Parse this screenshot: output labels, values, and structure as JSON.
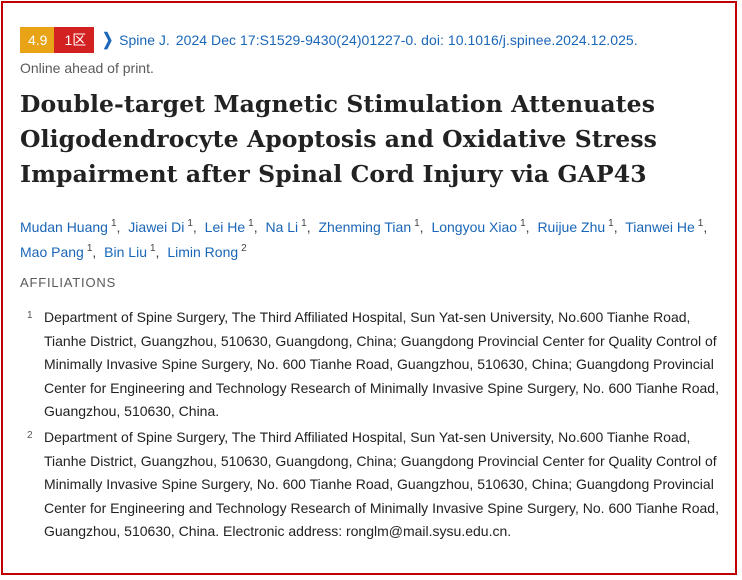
{
  "header": {
    "impact_factor": "4.9",
    "zone": "1区",
    "journal": "Spine J.",
    "citation": "2024 Dec 17:S1529-9430(24)01227-0. doi: 10.1016/j.spinee.2024.12.025.",
    "status": "Online ahead of print."
  },
  "article": {
    "title": "Double-target Magnetic Stimulation Attenuates Oligodendrocyte Apoptosis and Oxidative Stress Impairment after Spinal Cord Injury via GAP43"
  },
  "authors": [
    {
      "name": "Mudan Huang",
      "aff": "1"
    },
    {
      "name": "Jiawei Di",
      "aff": "1"
    },
    {
      "name": "Lei He",
      "aff": "1"
    },
    {
      "name": "Na Li",
      "aff": "1"
    },
    {
      "name": "Zhenming Tian",
      "aff": "1"
    },
    {
      "name": "Longyou Xiao",
      "aff": "1"
    },
    {
      "name": "Ruijue Zhu",
      "aff": "1"
    },
    {
      "name": "Tianwei He",
      "aff": "1"
    },
    {
      "name": "Mao Pang",
      "aff": "1"
    },
    {
      "name": "Bin Liu",
      "aff": "1"
    },
    {
      "name": "Limin Rong",
      "aff": "2"
    }
  ],
  "affiliations": {
    "heading": "AFFILIATIONS",
    "items": [
      {
        "num": "1",
        "text": "Department of Spine Surgery, The Third Affiliated Hospital, Sun Yat-sen University, No.600 Tianhe Road, Tianhe District, Guangzhou, 510630, Guangdong, China; Guangdong Provincial Center for Quality Control of Minimally Invasive Spine Surgery, No. 600 Tianhe Road, Guangzhou, 510630, China; Guangdong Provincial Center for Engineering and Technology Research of Minimally Invasive Spine Surgery, No. 600 Tianhe Road, Guangzhou, 510630, China."
      },
      {
        "num": "2",
        "text": "Department of Spine Surgery, The Third Affiliated Hospital, Sun Yat-sen University, No.600 Tianhe Road, Tianhe District, Guangzhou, 510630, Guangdong, China; Guangdong Provincial Center for Quality Control of Minimally Invasive Spine Surgery, No. 600 Tianhe Road, Guangzhou, 510630, China; Guangdong Provincial Center for Engineering and Technology Research of Minimally Invasive Spine Surgery, No. 600 Tianhe Road, Guangzhou, 510630, China. Electronic address: ronglm@mail.sysu.edu.cn."
      }
    ]
  },
  "colors": {
    "link": "#1a66b8",
    "impact_badge": "#e8a317",
    "zone_badge": "#d32020",
    "highlight_border": "#c00000"
  }
}
